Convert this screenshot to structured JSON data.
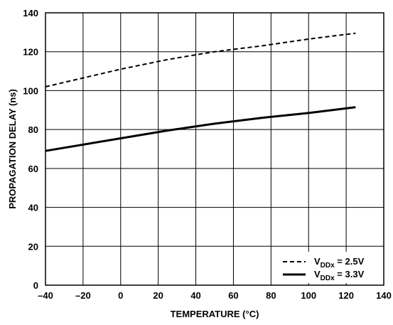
{
  "chart_data": {
    "type": "line",
    "xlabel": "TEMPERATURE (°C)",
    "ylabel": "PROPAGATION DELAY (ns)",
    "xlim": [
      -40,
      140
    ],
    "ylim": [
      0,
      140
    ],
    "xticks": [
      -40,
      -20,
      0,
      20,
      40,
      60,
      80,
      100,
      120,
      140
    ],
    "yticks": [
      0,
      20,
      40,
      60,
      80,
      100,
      120,
      140
    ],
    "xtick_labels": [
      "–40",
      "–20",
      "0",
      "20",
      "40",
      "60",
      "80",
      "100",
      "120",
      "140"
    ],
    "ytick_labels": [
      "0",
      "20",
      "40",
      "60",
      "80",
      "100",
      "120",
      "140"
    ],
    "grid": true,
    "legend_position": "bottom-right",
    "series": [
      {
        "name": "VDDx = 2.5V",
        "label_main": "V",
        "label_sub": "DDx",
        "label_rest": " = 2.5V",
        "style": "dashed",
        "x": [
          -40,
          -20,
          0,
          25,
          50,
          75,
          100,
          125
        ],
        "y": [
          102,
          106.5,
          111,
          116,
          120,
          123,
          126.5,
          129.5
        ]
      },
      {
        "name": "VDDx = 3.3V",
        "label_main": "V",
        "label_sub": "DDx",
        "label_rest": " = 3.3V",
        "style": "solid",
        "x": [
          -40,
          0,
          25,
          50,
          75,
          100,
          125
        ],
        "y": [
          69,
          75.5,
          79.5,
          83,
          86,
          88.5,
          91.5
        ]
      }
    ]
  }
}
